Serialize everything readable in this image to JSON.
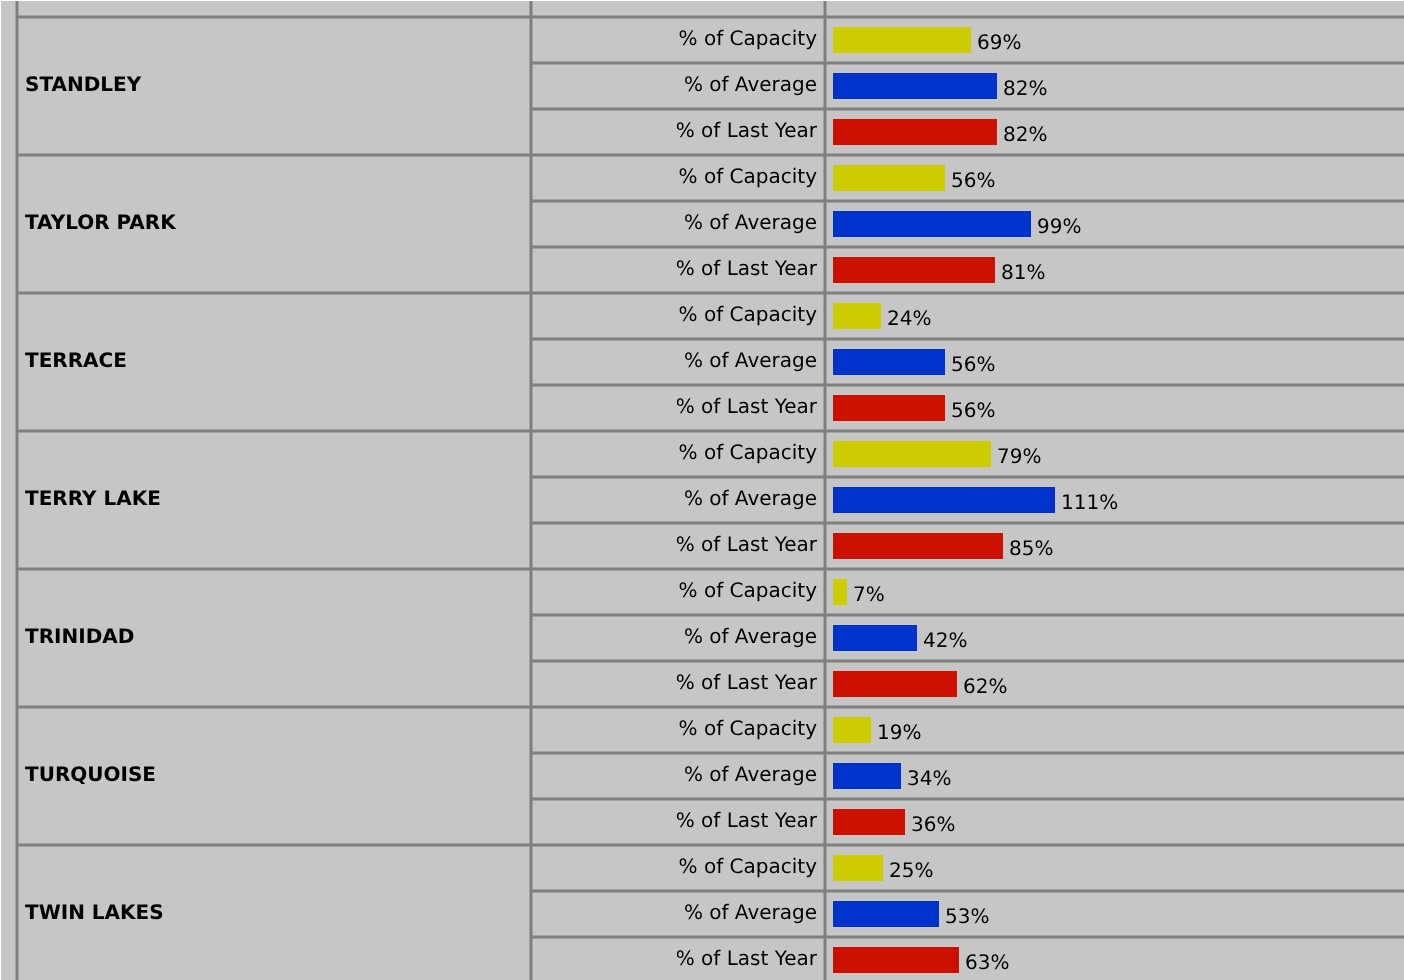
{
  "chart_data": {
    "type": "bar",
    "orientation": "horizontal",
    "categories": [
      "STANDLEY",
      "TAYLOR PARK",
      "TERRACE",
      "TERRY LAKE",
      "TRINIDAD",
      "TURQUOISE",
      "TWIN LAKES"
    ],
    "series": [
      {
        "name": "% of Capacity",
        "color": "#cccc00",
        "values": [
          69,
          56,
          24,
          79,
          7,
          19,
          25
        ],
        "value_labels": [
          "69%",
          "56%",
          "24%",
          "79%",
          "7%",
          "19%",
          "25%"
        ]
      },
      {
        "name": "% of Average",
        "color": "#0033cc",
        "values": [
          82,
          99,
          56,
          111,
          42,
          34,
          53
        ],
        "value_labels": [
          "82%",
          "99%",
          "56%",
          "111%",
          "42%",
          "34%",
          "53%"
        ]
      },
      {
        "name": "% of Last Year",
        "color": "#cc1100",
        "values": [
          82,
          81,
          56,
          85,
          62,
          36,
          63
        ],
        "value_labels": [
          "82%",
          "81%",
          "56%",
          "85%",
          "62%",
          "36%",
          "63%"
        ]
      }
    ]
  }
}
